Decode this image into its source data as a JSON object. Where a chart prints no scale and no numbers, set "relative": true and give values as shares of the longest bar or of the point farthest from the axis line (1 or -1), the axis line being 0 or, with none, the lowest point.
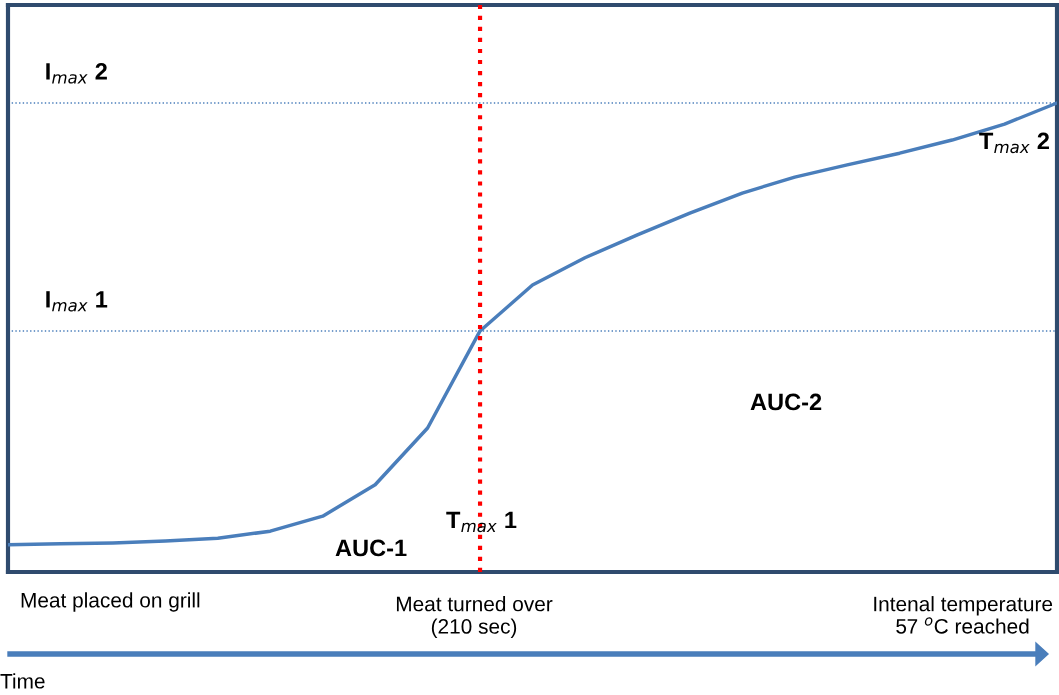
{
  "chart_data": {
    "type": "line",
    "relative": true,
    "xlabel": "Time",
    "categories": [
      null,
      null,
      null,
      null,
      null,
      null,
      null,
      null,
      null,
      null,
      null,
      null,
      null,
      null,
      null,
      null,
      null,
      null,
      null,
      null,
      null
    ],
    "series": [
      {
        "color": "#4a7ebb",
        "values": [
          0.058,
          0.06,
          0.062,
          0.066,
          0.072,
          0.087,
          0.119,
          0.186,
          0.307,
          0.514,
          0.612,
          0.67,
          0.719,
          0.765,
          0.808,
          0.842,
          0.868,
          0.893,
          0.921,
          0.955,
          1.0
        ]
      }
    ],
    "ref_lines": [
      {
        "axis": "y",
        "value": 0.514,
        "label": "I$_{max}$ 1",
        "color": "#4a7ebb",
        "line_style": "dotted"
      },
      {
        "axis": "y",
        "value": 1.0,
        "label": "I$_{max}$ 2",
        "color": "#4a7ebb",
        "line_style": "dotted"
      }
    ],
    "annotations": [
      "T$_{max}$ 1",
      "T$_{max}$ 2",
      "AUC-1",
      "AUC-2",
      "Meat placed on grill",
      "Meat turned over\n(210 sec)",
      "Intenal temperature\n57 $^{o}$C reached"
    ],
    "grid": false,
    "legend": false,
    "marker": "none",
    "line_style": "solid"
  }
}
